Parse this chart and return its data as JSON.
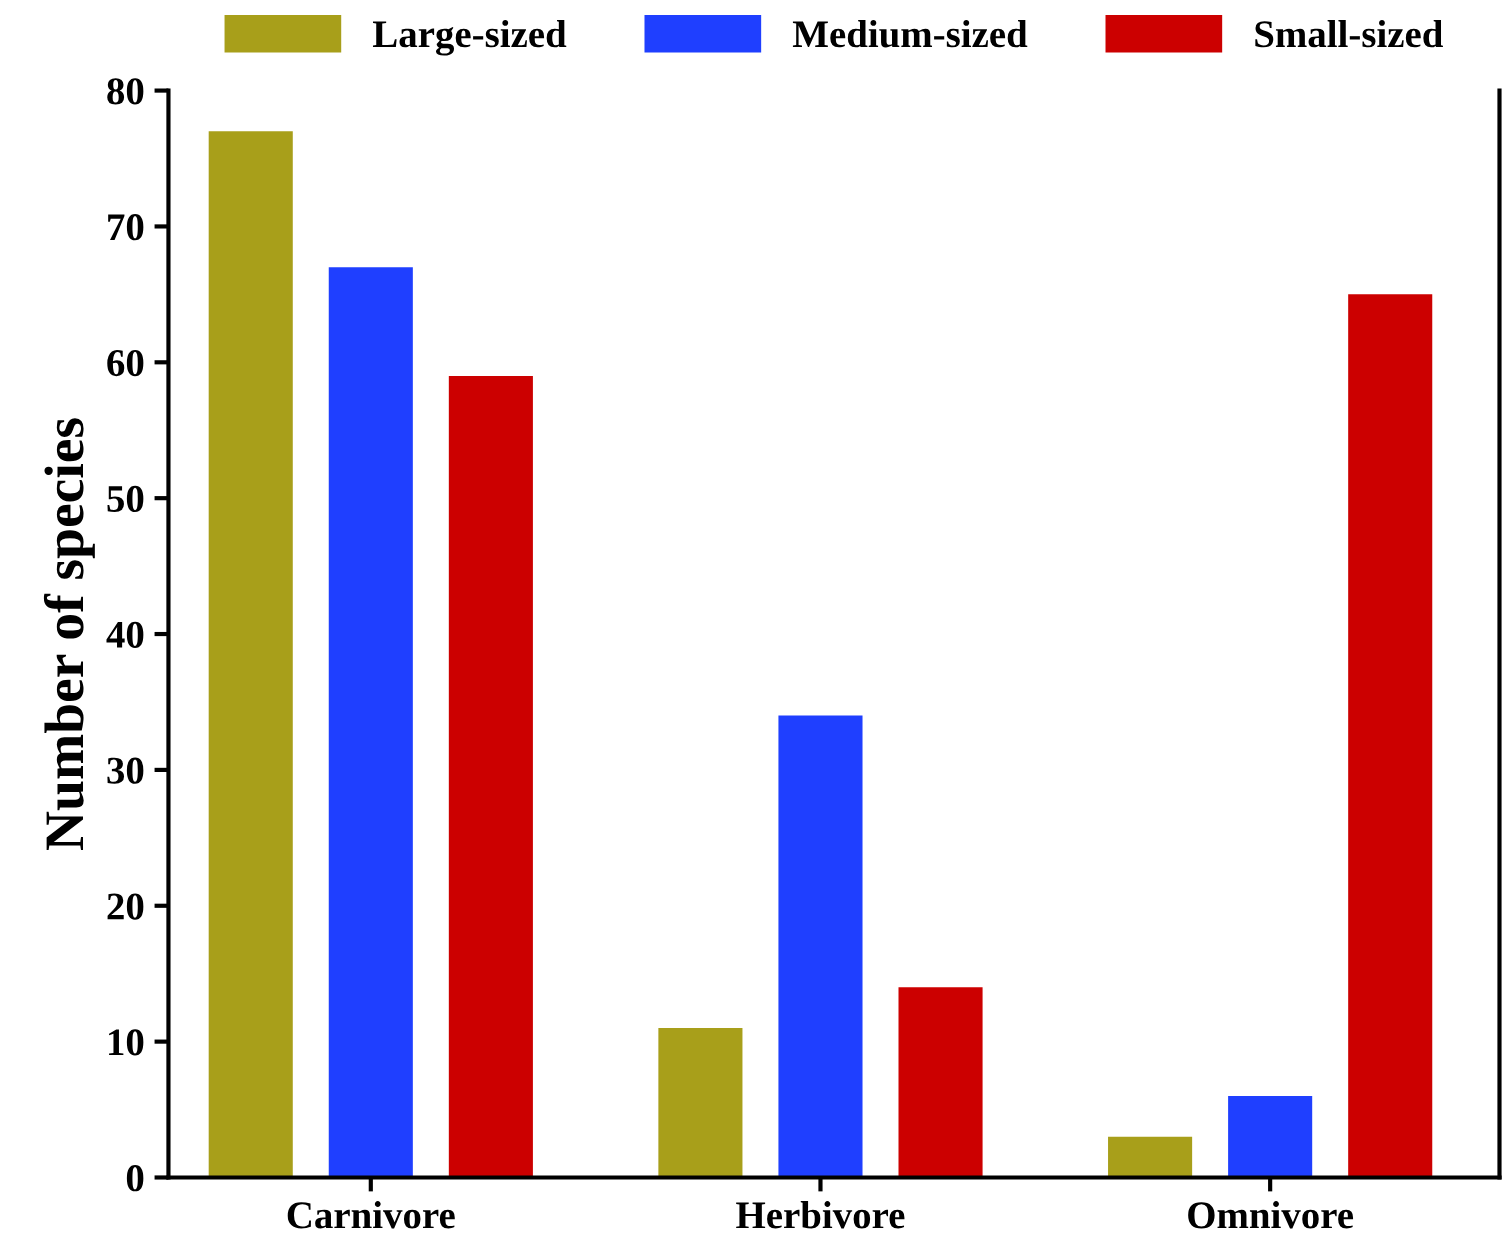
{
  "chart_data": {
    "type": "bar",
    "ylabel": "Number of species",
    "categories": [
      "Carnivore",
      "Herbivore",
      "Omnivore"
    ],
    "series": [
      {
        "name": "Large-sized",
        "color": "#a89f1a",
        "values": [
          77,
          11,
          3
        ]
      },
      {
        "name": "Medium-sized",
        "color": "#1f3fff",
        "values": [
          67,
          34,
          6
        ]
      },
      {
        "name": "Small-sized",
        "color": "#cc0000",
        "values": [
          59,
          14,
          65
        ]
      }
    ],
    "ylim": [
      0,
      80
    ],
    "yticks": [
      0,
      10,
      20,
      30,
      40,
      50,
      60,
      70,
      80
    ],
    "grid": false,
    "legend": "top"
  }
}
